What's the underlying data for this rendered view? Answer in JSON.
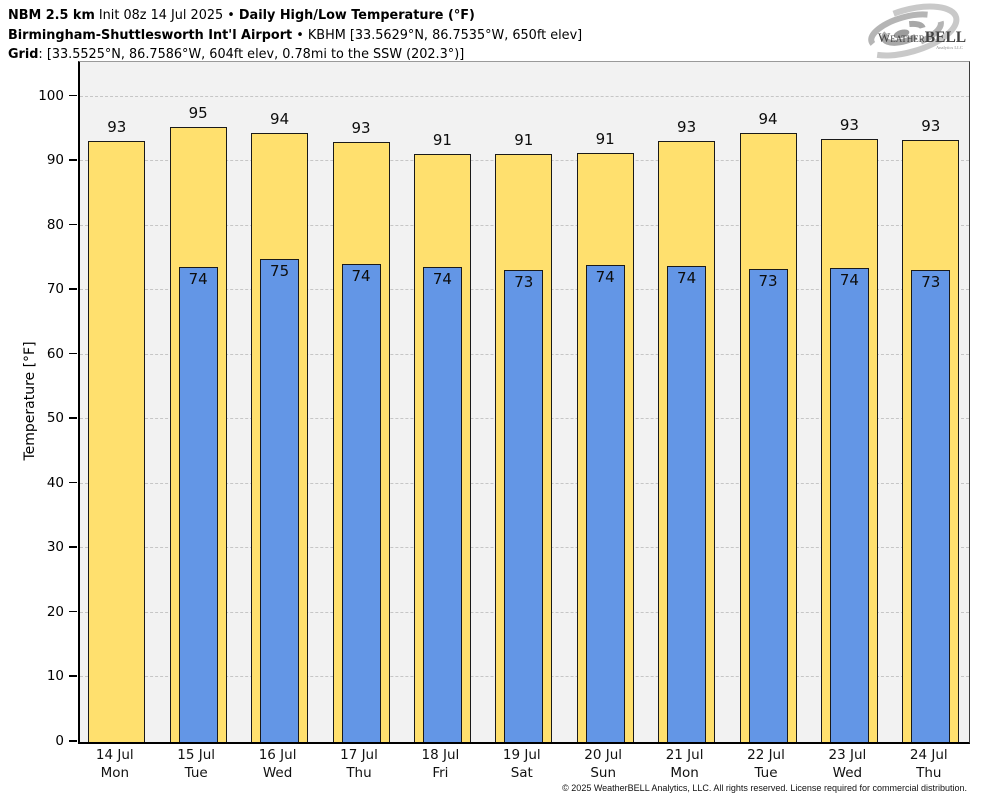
{
  "header": {
    "line1": {
      "model": "NBM 2.5 km",
      "init": " Init 08z 14 Jul 2025 • ",
      "title": "Daily High/Low Temperature (°F)"
    },
    "line2": {
      "station": "Birmingham-Shuttlesworth Int'l Airport",
      "details": " • KBHM [33.5629°N, 86.7535°W, 650ft elev]"
    },
    "line3": {
      "label": "Grid",
      "details": ": [33.5525°N, 86.7586°W, 604ft elev, 0.78mi to the SSW (202.3°)]"
    }
  },
  "logo": {
    "name_part1": "Weather",
    "name_part2": "BELL",
    "tagline": "Analytics LLC"
  },
  "chart_data": {
    "type": "bar",
    "title": "Daily High/Low Temperature (°F)",
    "ylabel": "Temperature [°F]",
    "ylim": [
      0,
      105.4
    ],
    "yticks": [
      0,
      10,
      20,
      30,
      40,
      50,
      60,
      70,
      80,
      90,
      100
    ],
    "grid": "horizontal dash-dot, behind bars",
    "legend_position": "none (values labeled on bars)",
    "categories": [
      {
        "date": "14 Jul",
        "day": "Mon"
      },
      {
        "date": "15 Jul",
        "day": "Tue"
      },
      {
        "date": "16 Jul",
        "day": "Wed"
      },
      {
        "date": "17 Jul",
        "day": "Thu"
      },
      {
        "date": "18 Jul",
        "day": "Fri"
      },
      {
        "date": "19 Jul",
        "day": "Sat"
      },
      {
        "date": "20 Jul",
        "day": "Sun"
      },
      {
        "date": "21 Jul",
        "day": "Mon"
      },
      {
        "date": "22 Jul",
        "day": "Tue"
      },
      {
        "date": "23 Jul",
        "day": "Wed"
      },
      {
        "date": "24 Jul",
        "day": "Thu"
      }
    ],
    "series": [
      {
        "name": "Daily High",
        "color": "#ffe06e",
        "labels": [
          93,
          95,
          94,
          93,
          91,
          91,
          91,
          93,
          94,
          93,
          93
        ],
        "bar_values": [
          93.1,
          95.3,
          94.4,
          93.0,
          91.2,
          91.1,
          91.3,
          93.1,
          94.4,
          93.4,
          93.3
        ]
      },
      {
        "name": "Daily Low",
        "color": "#6396e6",
        "labels": [
          null,
          74,
          75,
          74,
          74,
          73,
          74,
          74,
          73,
          74,
          73
        ],
        "bar_values": [
          null,
          73.6,
          74.8,
          74.1,
          73.6,
          73.1,
          73.9,
          73.8,
          73.3,
          73.5,
          73.2
        ]
      }
    ]
  },
  "footer": {
    "copyright": "© 2025 WeatherBELL Analytics, LLC. All rights reserved. License required for commercial distribution."
  },
  "colors": {
    "high_bar": "#ffe06e",
    "low_bar": "#6396e6",
    "bar_border": "#1a1a1a",
    "plot_background": "#f2f2f2",
    "gridline": "#c6c6c6",
    "axis": "#000000"
  }
}
